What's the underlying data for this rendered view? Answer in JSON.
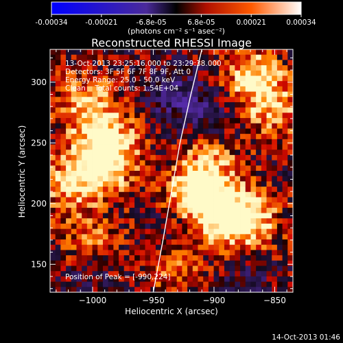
{
  "colorbar": {
    "tick_labels": [
      "-0.00034",
      "-0.00021",
      "-6.8e-05",
      "6.8e-05",
      "0.00021",
      "0.00034"
    ],
    "range": [
      -0.00034,
      0.00034
    ],
    "unit_label": "(photons cm⁻² s⁻¹ asec⁻²)"
  },
  "chart_data": {
    "type": "heatmap",
    "title": "Reconstructed RHESSI Image",
    "xlabel": "Heliocentric X (arcsec)",
    "ylabel": "Heliocentric Y (arcsec)",
    "xlim": [
      -1035,
      -835
    ],
    "ylim": [
      127,
      327
    ],
    "x_ticks": [
      -1000,
      -950,
      -900,
      -850
    ],
    "x_tick_labels": [
      "−1000",
      "−950",
      "−900",
      "−850"
    ],
    "y_ticks": [
      150,
      200,
      250,
      300
    ],
    "y_tick_labels": [
      "150",
      "200",
      "250",
      "300"
    ],
    "annotations": [
      "13-Oct-2013 23:25:16.000 to 23:29:38.000",
      "Detectors: 3F 5F 6F 7F 8F 9F, Att 0",
      "Energy Range: 25.0 - 50.0 keV",
      "Clean    Total counts: 1.54E+04"
    ],
    "peak_label": "Position of Peak = [-990,224]",
    "peak_position": [
      -990,
      224
    ],
    "bright_regions": [
      {
        "x": -915,
        "y": 205,
        "level": 0.95
      },
      {
        "x": -890,
        "y": 190,
        "level": 0.85
      },
      {
        "x": -870,
        "y": 185,
        "level": 0.75
      },
      {
        "x": -905,
        "y": 230,
        "level": 0.7
      },
      {
        "x": -995,
        "y": 230,
        "level": 0.9
      },
      {
        "x": -985,
        "y": 250,
        "level": 0.8
      },
      {
        "x": -1005,
        "y": 280,
        "level": 0.75
      },
      {
        "x": -1020,
        "y": 215,
        "level": 0.6
      },
      {
        "x": -870,
        "y": 305,
        "level": 0.8
      },
      {
        "x": -850,
        "y": 280,
        "level": 0.7
      },
      {
        "x": -1000,
        "y": 165,
        "level": 0.55
      },
      {
        "x": -935,
        "y": 150,
        "level": 0.55
      }
    ],
    "dim_regions": [
      {
        "x": -935,
        "y": 290,
        "level": -0.5
      },
      {
        "x": -905,
        "y": 275,
        "level": -0.45
      },
      {
        "x": -1000,
        "y": 145,
        "level": -0.4
      },
      {
        "x": -935,
        "y": 175,
        "level": -0.35
      },
      {
        "x": -870,
        "y": 140,
        "level": -0.3
      }
    ],
    "limb_curve": {
      "x": [
        -950,
        -942,
        -935,
        -928,
        -919,
        -910
      ],
      "y": [
        127,
        170,
        210,
        250,
        290,
        327
      ]
    }
  },
  "footer": {
    "timestamp": "14-Oct-2013 01:46"
  }
}
